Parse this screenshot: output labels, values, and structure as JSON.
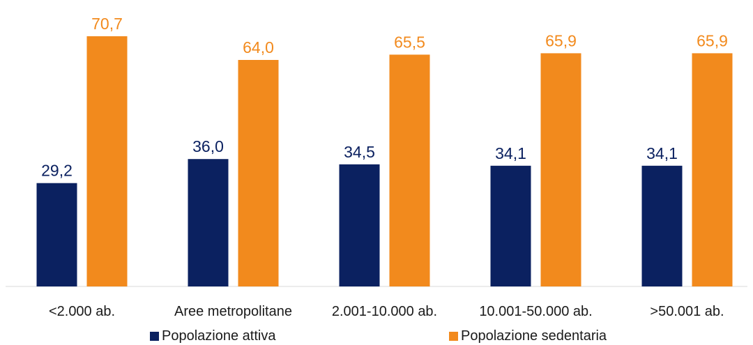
{
  "chart_data": {
    "type": "bar",
    "categories": [
      "<2.000 ab.",
      "Aree metropolitane",
      "2.001-10.000 ab.",
      "10.001-50.000 ab.",
      ">50.001 ab."
    ],
    "series": [
      {
        "name": "Popolazione attiva",
        "values": [
          29.2,
          36.0,
          34.5,
          34.1,
          34.1
        ],
        "labels": [
          "29,2",
          "36,0",
          "34,5",
          "34,1",
          "34,1"
        ],
        "color": "#0b2160"
      },
      {
        "name": "Popolazione sedentaria",
        "values": [
          70.7,
          64.0,
          65.5,
          65.9,
          65.9
        ],
        "labels": [
          "70,7",
          "64,0",
          "65,5",
          "65,9",
          "65,9"
        ],
        "color": "#f28a1d"
      }
    ],
    "ylim": [
      0,
      80
    ],
    "grid": false,
    "legend": "bottom",
    "value_label_colors": [
      "#0b2160",
      "#f28a1d"
    ]
  }
}
